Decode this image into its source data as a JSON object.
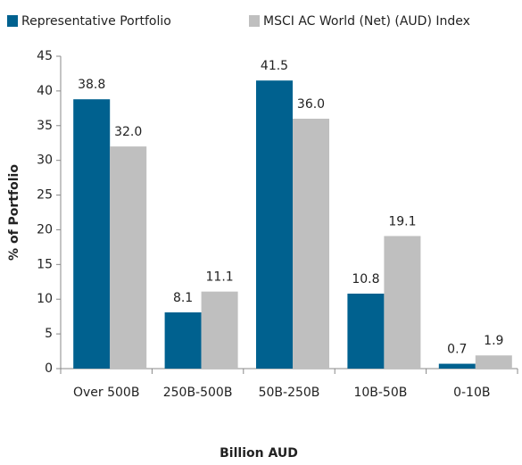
{
  "chart_data": {
    "type": "bar",
    "categories": [
      "Over 500B",
      "250B-500B",
      "50B-250B",
      "10B-50B",
      "0-10B"
    ],
    "series": [
      {
        "name": "Representative Portfolio",
        "color": "#00618f",
        "values": [
          38.8,
          8.1,
          41.5,
          10.8,
          0.7
        ],
        "value_labels": [
          "38.8",
          "8.1",
          "41.5",
          "10.8",
          "0.7"
        ]
      },
      {
        "name": "MSCI AC World (Net) (AUD) Index",
        "color": "#bfbfbf",
        "values": [
          32.0,
          11.1,
          36.0,
          19.1,
          1.9
        ],
        "value_labels": [
          "32.0",
          "11.1",
          "36.0",
          "19.1",
          "1.9"
        ]
      }
    ],
    "ylim": [
      0,
      45
    ],
    "yticks": [
      0,
      5,
      10,
      15,
      20,
      25,
      30,
      35,
      40,
      45
    ],
    "xlabel": "Billion AUD",
    "ylabel": "% of Portfolio",
    "legend": "top-left"
  }
}
